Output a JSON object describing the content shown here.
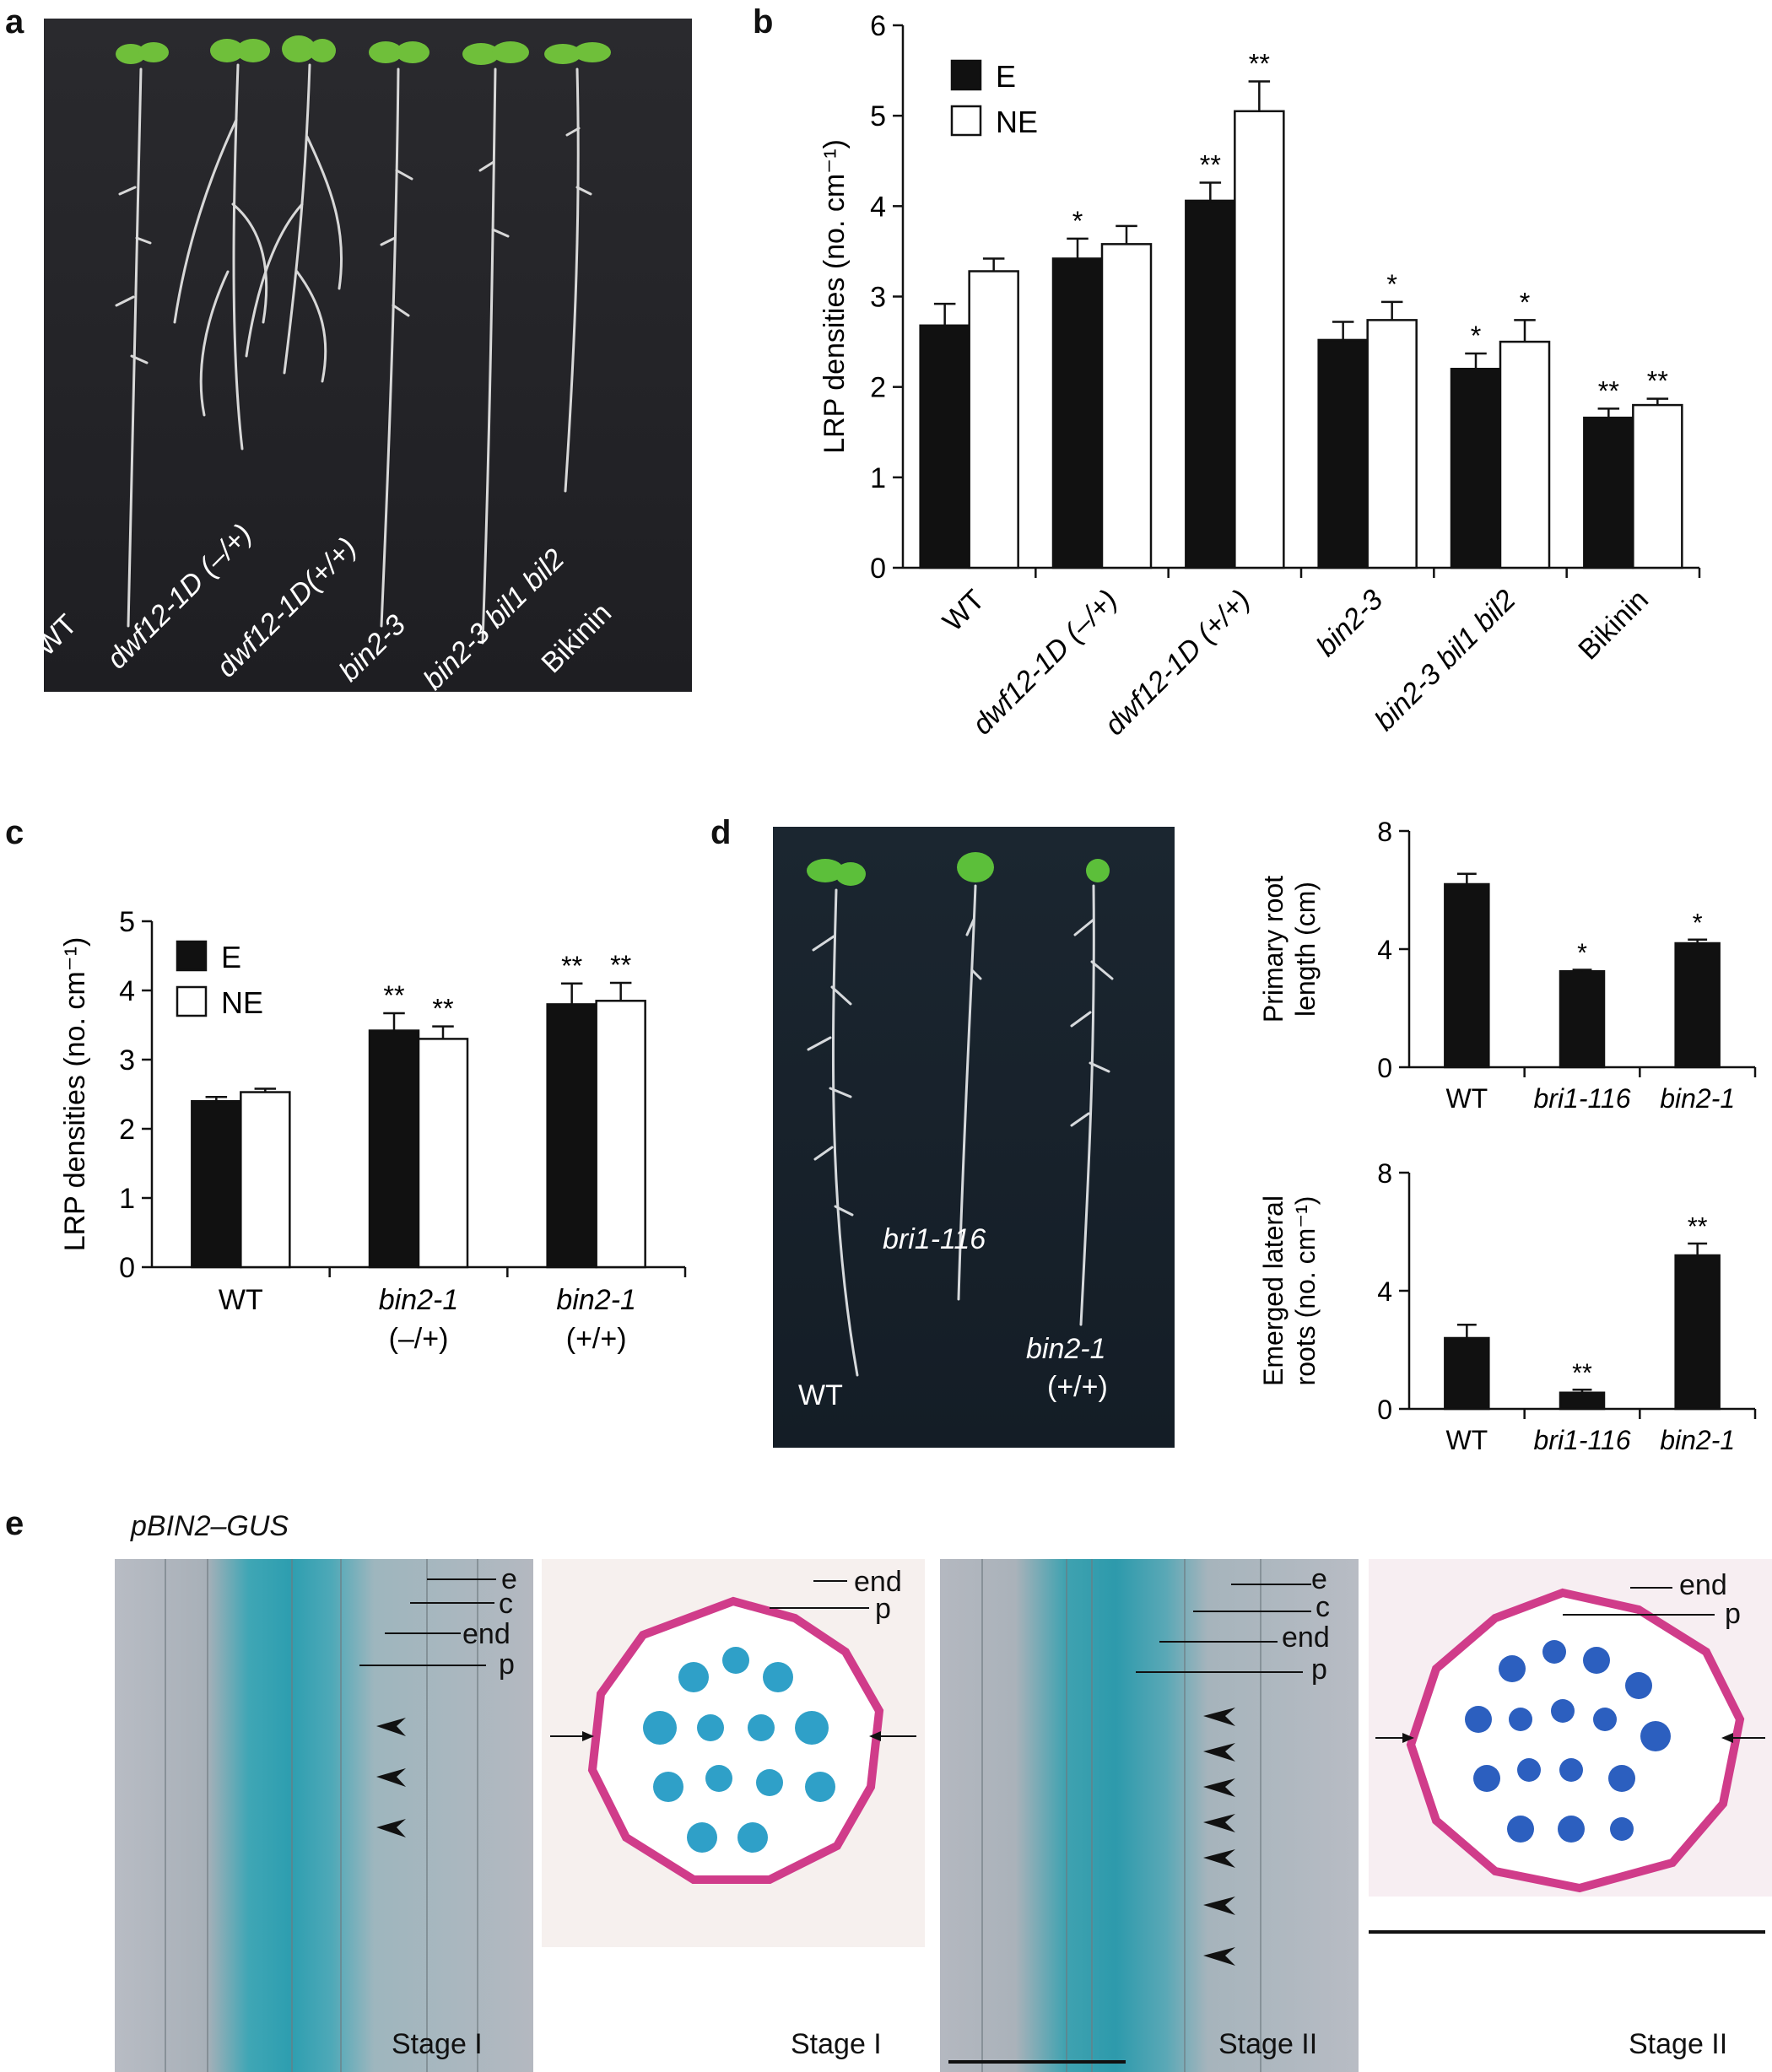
{
  "panel_letters": [
    "a",
    "b",
    "c",
    "d",
    "e"
  ],
  "panel_a": {
    "labels": [
      "WT",
      "dwf12-1D (–/+)",
      "dwf12-1D(+/+)",
      "bin2-3",
      "bin2-3 bil1 bil2",
      "Bikinin"
    ]
  },
  "panel_d": {
    "labels": [
      "WT",
      "bri1-116",
      "bin2-1",
      "(+/+)"
    ]
  },
  "panel_e": {
    "title": "pBIN2–GUS",
    "stage_labels": [
      "Stage I",
      "Stage I",
      "Stage II",
      "Stage II"
    ],
    "layer_labels_longitudinal": [
      "e",
      "c",
      "end",
      "p"
    ],
    "layer_labels_cross": [
      "end",
      "p"
    ]
  },
  "chart_data": [
    {
      "id": "b",
      "type": "bar",
      "ylabel": "LRP densities (no. cm⁻¹)",
      "ylim": [
        0,
        6
      ],
      "yticks": [
        0,
        1,
        2,
        3,
        4,
        5,
        6
      ],
      "categories": [
        "WT",
        "dwf12-1D (–/+)",
        "dwf12-1D (+/+)",
        "bin2-3",
        "bin2-3 bil1 bil2",
        "Bikinin"
      ],
      "category_italic": [
        false,
        true,
        true,
        true,
        true,
        false
      ],
      "series": [
        {
          "name": "E",
          "color": "#111111",
          "values": [
            2.68,
            3.42,
            4.06,
            2.52,
            2.2,
            1.66
          ],
          "errors": [
            0.24,
            0.22,
            0.2,
            0.2,
            0.17,
            0.1
          ],
          "sig": [
            "",
            "*",
            "**",
            "",
            "*",
            "**"
          ]
        },
        {
          "name": "NE",
          "color": "#ffffff",
          "values": [
            3.28,
            3.58,
            5.05,
            2.74,
            2.5,
            1.8
          ],
          "errors": [
            0.14,
            0.2,
            0.33,
            0.2,
            0.24,
            0.07
          ],
          "sig": [
            "",
            "",
            "**",
            "*",
            "*",
            "**"
          ]
        }
      ],
      "legend": "top-left"
    },
    {
      "id": "c",
      "type": "bar",
      "ylabel": "LRP densities (no. cm⁻¹)",
      "ylim": [
        0,
        5
      ],
      "yticks": [
        0,
        1,
        2,
        3,
        4,
        5
      ],
      "categories": [
        "WT",
        "bin2-1",
        "bin2-1"
      ],
      "category_sub": [
        "",
        "(–/+)",
        "(+/+)"
      ],
      "category_italic": [
        false,
        true,
        true
      ],
      "series": [
        {
          "name": "E",
          "color": "#111111",
          "values": [
            2.4,
            3.42,
            3.8
          ],
          "errors": [
            0.06,
            0.25,
            0.3
          ],
          "sig": [
            "",
            "**",
            "**"
          ]
        },
        {
          "name": "NE",
          "color": "#ffffff",
          "values": [
            2.53,
            3.3,
            3.85
          ],
          "errors": [
            0.05,
            0.18,
            0.26
          ],
          "sig": [
            "",
            "**",
            "**"
          ]
        }
      ],
      "legend": "top-left"
    },
    {
      "id": "d-top",
      "type": "bar",
      "ylabel": [
        "Primary root",
        "length (cm)"
      ],
      "ylim": [
        0,
        8
      ],
      "yticks": [
        0,
        4,
        8
      ],
      "categories": [
        "WT",
        "bri1-116",
        "bin2-1"
      ],
      "category_italic": [
        false,
        true,
        true
      ],
      "series": [
        {
          "name": "",
          "color": "#111111",
          "values": [
            6.2,
            3.25,
            4.2
          ],
          "errors": [
            0.35,
            0.05,
            0.12
          ],
          "sig": [
            "",
            "*",
            "*"
          ]
        }
      ]
    },
    {
      "id": "d-bottom",
      "type": "bar",
      "ylabel": [
        "Emerged lateral",
        "roots (no. cm⁻¹)"
      ],
      "ylim": [
        0,
        8
      ],
      "yticks": [
        0,
        4,
        8
      ],
      "categories": [
        "WT",
        "bri1-116",
        "bin2-1"
      ],
      "category_italic": [
        false,
        true,
        true
      ],
      "series": [
        {
          "name": "",
          "color": "#111111",
          "values": [
            2.4,
            0.55,
            5.2
          ],
          "errors": [
            0.45,
            0.1,
            0.4
          ],
          "sig": [
            "",
            "**",
            "**"
          ]
        }
      ]
    }
  ]
}
